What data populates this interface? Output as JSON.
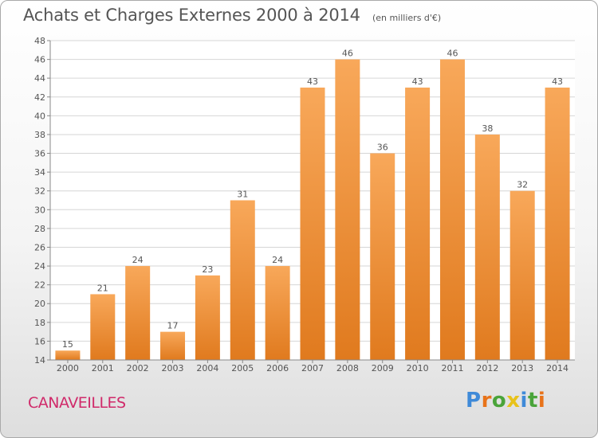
{
  "title": "Achats et Charges Externes 2000 à 2014",
  "unit_note": "(en milliers d'€)",
  "commune": "CANAVEILLES",
  "logo": {
    "text": "Proxiti",
    "letters": [
      "P",
      "r",
      "o",
      "x",
      "i",
      "t",
      "i"
    ],
    "colors": [
      "#3f8ad8",
      "#e8731a",
      "#4aa43a",
      "#e8c21a",
      "#3f8ad8",
      "#4aa43a",
      "#e8731a"
    ]
  },
  "colors": {
    "bar_top": "#f8a85a",
    "bar_bottom": "#e07a1e",
    "grid": "#d6d6d6",
    "axis": "#888888",
    "text": "#555555",
    "commune": "#d02a6a"
  },
  "chart_data": {
    "type": "bar",
    "title": "Achats et Charges Externes 2000 à 2014",
    "subtitle": "(en milliers d'€)",
    "categories": [
      "2000",
      "2001",
      "2002",
      "2003",
      "2004",
      "2005",
      "2006",
      "2007",
      "2008",
      "2009",
      "2010",
      "2011",
      "2012",
      "2013",
      "2014"
    ],
    "values": [
      15,
      21,
      24,
      17,
      23,
      31,
      24,
      43,
      46,
      36,
      43,
      46,
      38,
      32,
      43
    ],
    "ylim": [
      14,
      48
    ],
    "yticks": [
      14,
      16,
      18,
      20,
      22,
      24,
      26,
      28,
      30,
      32,
      34,
      36,
      38,
      40,
      42,
      44,
      46,
      48
    ],
    "grid": true,
    "data_labels": true,
    "xlabel": "",
    "ylabel": ""
  }
}
